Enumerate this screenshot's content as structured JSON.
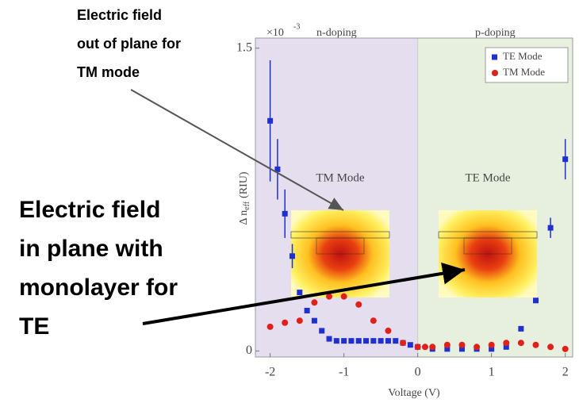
{
  "chart_data": {
    "type": "scatter",
    "xlabel": "Voltage (V)",
    "ylabel": {
      "symbol": "Δ n",
      "subscript": "eff",
      "unit": "(RIU)"
    },
    "y_exponent": {
      "base": "×10",
      "power": "-3"
    },
    "xlim": [
      -2.2,
      2.1
    ],
    "ylim": [
      -0.03,
      1.55
    ],
    "xticks": [
      -2,
      -1,
      0,
      1,
      2
    ],
    "yticks": [
      0,
      1.5
    ],
    "legend": "top-right",
    "regions": [
      {
        "label": "n-doping",
        "x": [
          -2.2,
          0
        ],
        "color": "#e4deef"
      },
      {
        "label": "p-doping",
        "x": [
          0,
          2.1
        ],
        "color": "#e7f0de"
      }
    ],
    "insets": [
      {
        "label": "TM Mode",
        "x": -1.05
      },
      {
        "label": "TE Mode",
        "x": 0.95
      }
    ],
    "series": [
      {
        "name": "TE Mode",
        "color": "#1f2fd0",
        "marker": "square",
        "x": [
          -2,
          -1.9,
          -1.8,
          -1.7,
          -1.6,
          -1.5,
          -1.4,
          -1.3,
          -1.2,
          -1.1,
          -1.0,
          -0.9,
          -0.8,
          -0.7,
          -0.6,
          -0.5,
          -0.4,
          -0.3,
          -0.2,
          -0.1,
          0.0,
          0.2,
          0.4,
          0.6,
          0.8,
          1.0,
          1.2,
          1.4,
          1.6,
          1.8,
          2.0
        ],
        "values": [
          1.14,
          0.9,
          0.68,
          0.47,
          0.29,
          0.2,
          0.15,
          0.1,
          0.06,
          0.05,
          0.05,
          0.05,
          0.05,
          0.05,
          0.05,
          0.05,
          0.05,
          0.05,
          0.04,
          0.03,
          0.02,
          0.01,
          0.01,
          0.01,
          0.01,
          0.01,
          0.02,
          0.11,
          0.25,
          0.61,
          0.95
        ],
        "errors": [
          0.3,
          0.15,
          0.12,
          0.06,
          null,
          null,
          null,
          null,
          null,
          null,
          null,
          null,
          null,
          null,
          null,
          null,
          null,
          null,
          null,
          null,
          null,
          null,
          null,
          null,
          null,
          null,
          null,
          null,
          null,
          0.05,
          0.1
        ]
      },
      {
        "name": "TM Mode",
        "color": "#e0201a",
        "marker": "circle",
        "x": [
          -2,
          -1.8,
          -1.6,
          -1.4,
          -1.2,
          -1.0,
          -0.8,
          -0.6,
          -0.4,
          -0.2,
          0.0,
          0.1,
          0.2,
          0.4,
          0.6,
          0.8,
          1.0,
          1.2,
          1.4,
          1.6,
          1.8,
          2.0
        ],
        "values": [
          0.12,
          0.14,
          0.15,
          0.24,
          0.27,
          0.27,
          0.23,
          0.15,
          0.1,
          0.04,
          0.02,
          0.02,
          0.02,
          0.03,
          0.03,
          0.02,
          0.03,
          0.04,
          0.04,
          0.03,
          0.02,
          0.01
        ],
        "errors": [
          null,
          null,
          null,
          null,
          null,
          null,
          null,
          null,
          null,
          null,
          null,
          null,
          null,
          null,
          null,
          null,
          null,
          null,
          null,
          null,
          null,
          null
        ]
      }
    ]
  },
  "annotations": [
    {
      "lines": [
        "Electric field",
        "out of plane for",
        "TM mode"
      ]
    },
    {
      "lines": [
        "Electric field",
        "in plane with",
        "monolayer for",
        "TE"
      ]
    }
  ]
}
